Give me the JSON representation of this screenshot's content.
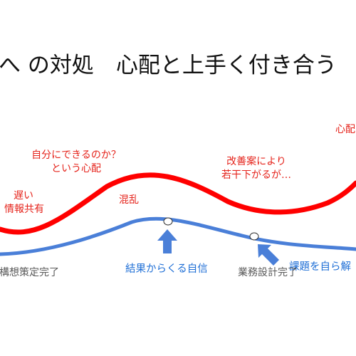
{
  "title": "へ の対処　心配と上手く付き合う",
  "colors": {
    "red_curve": "#ff0000",
    "blue_curve": "#4a7fd8",
    "arrow": "#4a7fd8",
    "annotation_text": "#e5231b",
    "blue_text": "#1f6fd6",
    "milestone_text": "#595959"
  },
  "annotations": {
    "slow_info_line1": "遅い",
    "slow_info_line2": "情報共有",
    "worry_line1": "自分にできるのか？",
    "worry_line2": "という心配",
    "confusion": "混乱",
    "improve_line1": "改善案により",
    "improve_line2": "若干下がるが…",
    "worry_right": "心配"
  },
  "blue_labels": {
    "confidence": "結果からくる自信",
    "solve_issues": "課題を自ら解"
  },
  "milestones": {
    "concept_done": "構想策定完了",
    "design_done": "業務設計完了"
  }
}
